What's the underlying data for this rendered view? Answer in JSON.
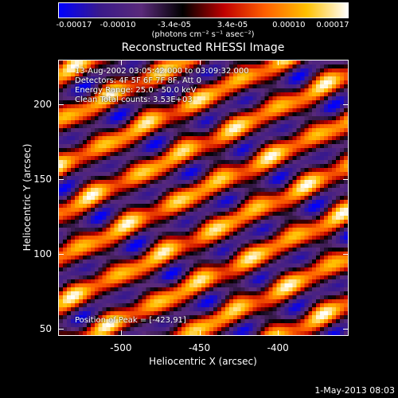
{
  "colorbar": {
    "ticks": [
      "-0.00017",
      "-0.00010",
      "-3.4e-05",
      "3.4e-05",
      "0.00010",
      "0.00017"
    ],
    "tick_values": [
      -0.00017,
      -0.0001,
      -3.4e-05,
      3.4e-05,
      0.0001,
      0.00017
    ],
    "range": [
      -0.00017,
      0.00017
    ],
    "unit": "(photons cm⁻² s⁻¹ asec⁻²)"
  },
  "title": "Reconstructed RHESSI Image",
  "annotations": {
    "time": "13-Aug-2002 03:05:42.000 to 03:09:32.000",
    "detectors": "Detectors: 4F 5F 6F 7F 8F, Att 0",
    "energy": "Energy Range: 25.0 - 50.0 keV",
    "clean": "Clean    Total counts: 3.53E+03",
    "peak": "Position of Peak = [-423,91]"
  },
  "axes": {
    "xlabel": "Heliocentric X (arcsec)",
    "ylabel": "Heliocentric Y (arcsec)",
    "xlim": [
      -540,
      -355
    ],
    "ylim": [
      45,
      230
    ],
    "xticks": [
      {
        "value": -500,
        "label": "-500"
      },
      {
        "value": -450,
        "label": "-450"
      },
      {
        "value": -400,
        "label": "-400"
      }
    ],
    "yticks": [
      {
        "value": 50,
        "label": "50"
      },
      {
        "value": 100,
        "label": "100"
      },
      {
        "value": 150,
        "label": "150"
      },
      {
        "value": 200,
        "label": "200"
      }
    ]
  },
  "footer": "1-May-2013 08:03",
  "colors": {
    "colormap": [
      "#0000ff",
      "#3a1a8a",
      "#5a2a7a",
      "#000000",
      "#c00000",
      "#ff6000",
      "#ffc000",
      "#ffffff"
    ]
  }
}
